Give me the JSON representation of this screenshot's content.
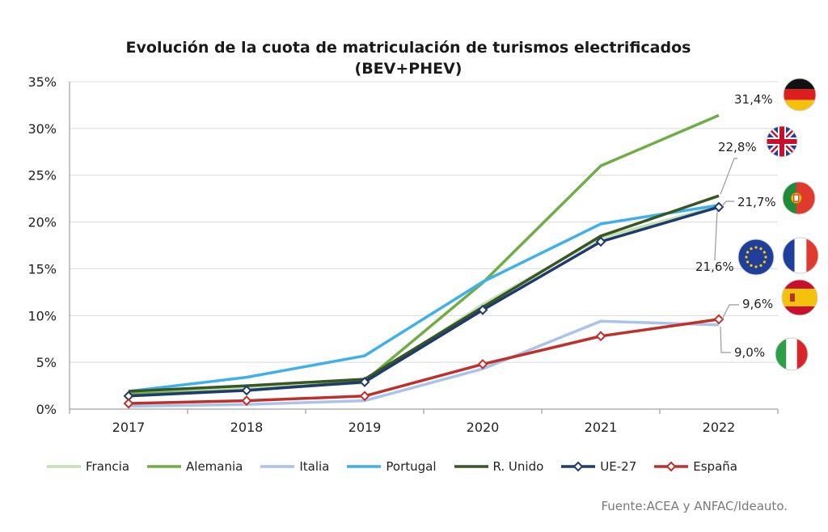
{
  "chart_data": {
    "type": "line",
    "title": "Evolución de la cuota de matriculación de turismos electrificados",
    "subtitle": "(BEV+PHEV)",
    "categories": [
      "2017",
      "2018",
      "2019",
      "2020",
      "2021",
      "2022"
    ],
    "ylim": [
      0,
      35
    ],
    "yticks": [
      "0%",
      "5%",
      "10%",
      "15%",
      "20%",
      "25%",
      "30%",
      "35%"
    ],
    "grid": true,
    "legend_position": "bottom",
    "series": [
      {
        "name": "Francia",
        "color": "#c5e0b4",
        "values": [
          1.8,
          2.2,
          2.8,
          11.2,
          18.3,
          21.7
        ],
        "markers": false
      },
      {
        "name": "Alemania",
        "color": "#70ad47",
        "values": [
          1.6,
          2.0,
          3.0,
          13.5,
          26.0,
          31.4
        ],
        "markers": false
      },
      {
        "name": "Italia",
        "color": "#a9c4e8",
        "values": [
          0.3,
          0.5,
          0.9,
          4.3,
          9.4,
          9.0
        ],
        "markers": false
      },
      {
        "name": "Portugal",
        "color": "#3fb0ea",
        "values": [
          1.9,
          3.4,
          5.7,
          13.6,
          19.8,
          21.8
        ],
        "markers": false
      },
      {
        "name": "R. Unido",
        "color": "#375623",
        "values": [
          1.9,
          2.5,
          3.2,
          10.9,
          18.5,
          22.8
        ],
        "markers": false
      },
      {
        "name": "UE-27",
        "color": "#1f3a6e",
        "values": [
          1.4,
          2.0,
          2.9,
          10.6,
          17.9,
          21.6
        ],
        "markers": true
      },
      {
        "name": "España",
        "color": "#c0302b",
        "values": [
          0.6,
          0.9,
          1.4,
          4.8,
          7.8,
          9.6
        ],
        "markers": true
      }
    ],
    "annotations": [
      "31,4%",
      "22,8%",
      "21,7%",
      "21,6%",
      "9,6%",
      "9,0%"
    ]
  },
  "flags": [
    "germany-flag-icon",
    "uk-flag-icon",
    "portugal-flag-icon",
    "eu-flag-icon",
    "france-flag-icon",
    "spain-flag-icon",
    "italy-flag-icon"
  ],
  "source": "Fuente:ACEA y ANFAC/Ideauto."
}
